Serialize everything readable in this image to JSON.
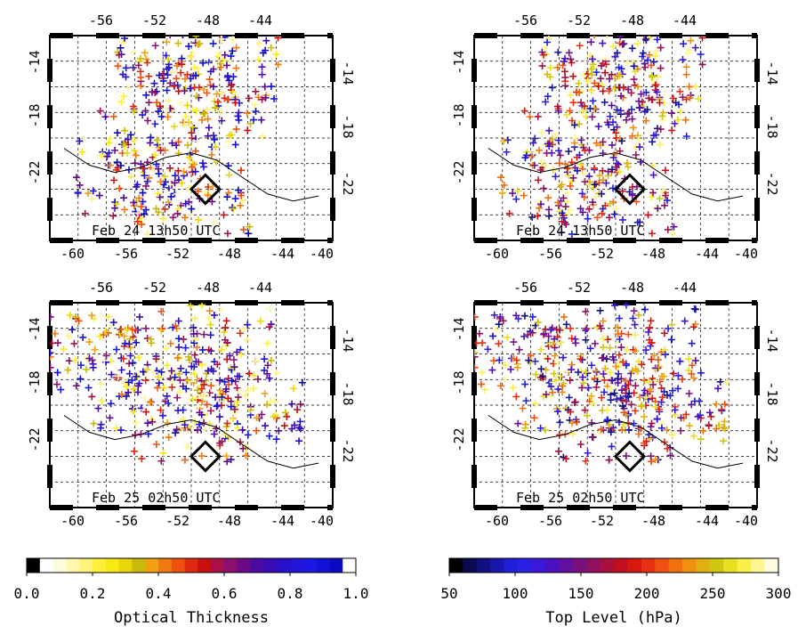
{
  "panels": [
    {
      "id": "p1",
      "field": "optical-thickness",
      "date_label": "Feb 24 13h50 UTC",
      "blob_seed": 11
    },
    {
      "id": "p2",
      "field": "top-level",
      "date_label": "Feb 24 13h50 UTC",
      "blob_seed": 11
    },
    {
      "id": "p3",
      "field": "optical-thickness",
      "date_label": "Feb 25 02h50 UTC",
      "blob_seed": 29
    },
    {
      "id": "p4",
      "field": "top-level",
      "date_label": "Feb 25 02h50 UTC",
      "blob_seed": 29
    }
  ],
  "axes": {
    "top_ticks": [
      "-56",
      "-52",
      "-48",
      "-44"
    ],
    "bottom_ticks": [
      "-60",
      "-56",
      "-52",
      "-48",
      "-44",
      "-40"
    ],
    "left_ticks": [
      "-14",
      "-18",
      "-22"
    ],
    "right_ticks": [
      "-14",
      "-18",
      "-22"
    ]
  },
  "colorbars": [
    {
      "id": "optical",
      "title": "Optical Thickness",
      "tick_labels": [
        "0.0",
        "0.2",
        "0.4",
        "0.6",
        "0.8",
        "1.0"
      ],
      "colors": [
        "#000000",
        "#ffffff",
        "#fffbe0",
        "#fff7b0",
        "#fff37a",
        "#ffef3d",
        "#f7ea13",
        "#e8d50a",
        "#c8b90a",
        "#f0a010",
        "#f07a10",
        "#f05010",
        "#e02a10",
        "#c81010",
        "#a8104a",
        "#8a1070",
        "#6a0a88",
        "#4c0aa0",
        "#3a0cb8",
        "#2a10c8",
        "#2214d8",
        "#1a18e4",
        "#1212d8",
        "#0a0ac0",
        "#ffffff"
      ]
    },
    {
      "id": "toplevel",
      "title": "Top Level (hPa)",
      "tick_labels": [
        "50",
        "100",
        "150",
        "200",
        "250",
        "300"
      ],
      "colors": [
        "#000000",
        "#0a0a50",
        "#101080",
        "#1818b0",
        "#2020d8",
        "#2a20e8",
        "#3a18d8",
        "#4c10c0",
        "#6010a0",
        "#781080",
        "#901060",
        "#a81040",
        "#c01020",
        "#d81810",
        "#e83010",
        "#f05010",
        "#f07010",
        "#f09010",
        "#e0b010",
        "#d0c810",
        "#e8e020",
        "#f8f048",
        "#fff890",
        "#fffce0"
      ]
    }
  ]
}
